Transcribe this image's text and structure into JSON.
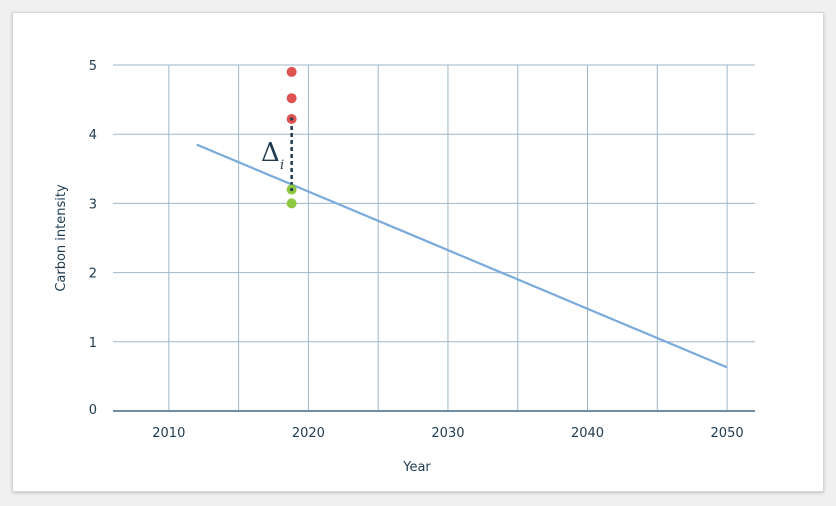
{
  "chart_data": {
    "type": "scatter",
    "xlabel": "Year",
    "ylabel": "Carbon intensity",
    "xlim": [
      2006,
      2052
    ],
    "ylim": [
      0,
      5
    ],
    "x_ticks": [
      2010,
      2020,
      2030,
      2040,
      2050
    ],
    "y_ticks": [
      0,
      1,
      2,
      3,
      4,
      5
    ],
    "x_grid": [
      2010,
      2015,
      2020,
      2025,
      2030,
      2035,
      2040,
      2045,
      2050
    ],
    "grid": true,
    "trend_line": {
      "x": [
        2012,
        2050
      ],
      "y": [
        3.85,
        0.63
      ],
      "color": "#7aaadb"
    },
    "series": [
      {
        "color": "#e05252",
        "points": [
          [
            2018.8,
            4.9
          ],
          [
            2018.8,
            4.52
          ],
          [
            2018.8,
            4.22
          ]
        ]
      },
      {
        "color": "#8dc63f",
        "points": [
          [
            2018.8,
            3.2
          ],
          [
            2018.8,
            3.0
          ]
        ]
      }
    ],
    "annotation": {
      "symbol": "Δ",
      "subscript": "i",
      "x": 2018.8,
      "y_from": 4.22,
      "y_to": 3.2
    },
    "colors": {
      "grid": "#9fb7c9",
      "text": "#1e3b50",
      "axis": "#6f8ea6"
    }
  }
}
